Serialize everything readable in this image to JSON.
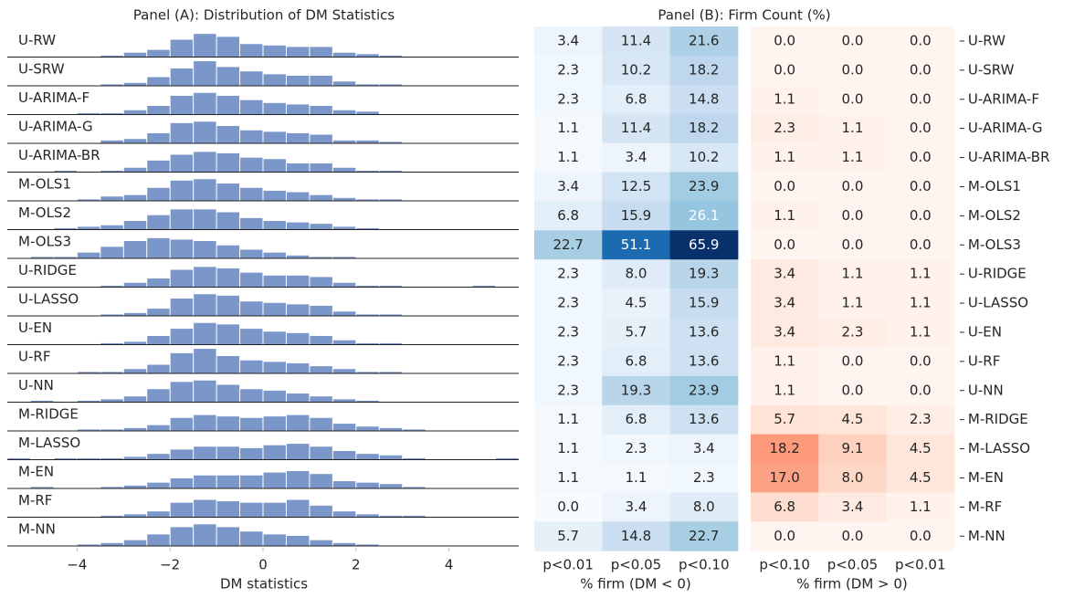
{
  "chart_data": [
    {
      "type": "histogram",
      "title": "Panel (A): Distribution of DM Statistics",
      "xlabel": "DM statistics",
      "color": "#7b97ca",
      "xlim": [
        -5.5,
        5.5
      ],
      "ylim": [
        0,
        18
      ],
      "xticks": [
        {
          "value": -4,
          "label": "−4"
        },
        {
          "value": -2,
          "label": "−2"
        },
        0,
        2,
        4
      ],
      "bins": [
        -5.5,
        -5,
        -4.5,
        -4,
        -3.5,
        -3,
        -2.5,
        -2,
        -1.5,
        -1,
        -0.5,
        0,
        0.5,
        1,
        1.5,
        2,
        2.5,
        3,
        3.5,
        4,
        4.5,
        5,
        5.5
      ],
      "series": [
        {
          "name": "U-RW",
          "values": [
            0,
            0,
            0,
            0,
            1,
            3,
            5,
            12,
            16,
            14,
            9,
            8,
            7,
            7,
            3,
            2,
            1,
            0,
            0,
            0,
            0,
            0
          ]
        },
        {
          "name": "U-SRW",
          "values": [
            0,
            0,
            0,
            0,
            1,
            2,
            6,
            12,
            17,
            13,
            10,
            8,
            7,
            7,
            3,
            1,
            1,
            0,
            0,
            0,
            0,
            0
          ]
        },
        {
          "name": "U-ARIMA-F",
          "values": [
            0,
            0,
            0,
            1,
            1,
            3,
            6,
            13,
            15,
            13,
            10,
            8,
            7,
            6,
            3,
            2,
            0,
            0,
            0,
            0,
            0,
            0
          ]
        },
        {
          "name": "U-ARIMA-G",
          "values": [
            0,
            0,
            0,
            0,
            2,
            3,
            7,
            14,
            15,
            12,
            9,
            8,
            7,
            6,
            2,
            2,
            1,
            0,
            0,
            0,
            0,
            0
          ]
        },
        {
          "name": "U-ARIMA-BR",
          "values": [
            0,
            0,
            1,
            0,
            1,
            3,
            8,
            12,
            14,
            13,
            10,
            9,
            6,
            6,
            3,
            1,
            1,
            0,
            0,
            0,
            0,
            0
          ]
        },
        {
          "name": "M-OLS1",
          "values": [
            0,
            0,
            0,
            1,
            3,
            4,
            9,
            14,
            15,
            12,
            9,
            7,
            6,
            4,
            2,
            1,
            1,
            0,
            0,
            0,
            0,
            0
          ]
        },
        {
          "name": "M-OLS2",
          "values": [
            0,
            0,
            1,
            2,
            3,
            6,
            10,
            14,
            14,
            12,
            8,
            6,
            5,
            4,
            2,
            1,
            0,
            0,
            0,
            0,
            0,
            0
          ]
        },
        {
          "name": "M-OLS3",
          "values": [
            0,
            1,
            1,
            4,
            8,
            12,
            14,
            13,
            12,
            9,
            6,
            4,
            2,
            1,
            1,
            0,
            0,
            0,
            0,
            0,
            0,
            0
          ]
        },
        {
          "name": "U-RIDGE",
          "values": [
            0,
            0,
            0,
            0,
            1,
            3,
            6,
            12,
            14,
            13,
            10,
            8,
            8,
            7,
            3,
            1,
            1,
            0,
            0,
            0,
            1,
            0
          ]
        },
        {
          "name": "U-LASSO",
          "values": [
            0,
            0,
            0,
            0,
            1,
            2,
            5,
            12,
            15,
            14,
            10,
            9,
            8,
            7,
            3,
            1,
            1,
            0,
            0,
            0,
            0,
            0
          ]
        },
        {
          "name": "U-EN",
          "values": [
            0,
            0,
            0,
            0,
            1,
            2,
            6,
            11,
            15,
            14,
            11,
            9,
            8,
            6,
            3,
            1,
            1,
            0,
            0,
            0,
            0,
            0
          ]
        },
        {
          "name": "U-RF",
          "values": [
            0,
            0,
            0,
            1,
            1,
            3,
            6,
            14,
            17,
            12,
            9,
            8,
            7,
            5,
            3,
            1,
            1,
            0,
            0,
            0,
            0,
            0
          ]
        },
        {
          "name": "U-NN",
          "values": [
            0,
            1,
            0,
            1,
            2,
            4,
            9,
            14,
            15,
            12,
            9,
            8,
            6,
            4,
            2,
            1,
            0,
            0,
            0,
            0,
            0,
            0
          ]
        },
        {
          "name": "M-RIDGE",
          "values": [
            0,
            0,
            0,
            1,
            1,
            2,
            4,
            9,
            11,
            10,
            9,
            10,
            11,
            9,
            5,
            3,
            2,
            1,
            0,
            0,
            0,
            0
          ]
        },
        {
          "name": "M-LASSO",
          "values": [
            1,
            0,
            1,
            1,
            1,
            2,
            4,
            7,
            9,
            9,
            8,
            10,
            11,
            9,
            6,
            4,
            3,
            1,
            0,
            0,
            0,
            1
          ]
        },
        {
          "name": "M-EN",
          "values": [
            0,
            1,
            0,
            0,
            1,
            2,
            4,
            7,
            9,
            9,
            9,
            11,
            12,
            10,
            5,
            4,
            3,
            1,
            0,
            0,
            0,
            0
          ]
        },
        {
          "name": "M-RF",
          "values": [
            0,
            0,
            0,
            0,
            1,
            2,
            4,
            10,
            12,
            11,
            10,
            10,
            12,
            8,
            4,
            2,
            1,
            1,
            0,
            0,
            0,
            0
          ]
        },
        {
          "name": "M-NN",
          "values": [
            0,
            0,
            0,
            1,
            2,
            4,
            8,
            13,
            15,
            13,
            10,
            8,
            7,
            4,
            2,
            1,
            0,
            0,
            0,
            0,
            0,
            0
          ]
        }
      ]
    },
    {
      "type": "heatmap",
      "title": "Panel (B): Firm Count (%)",
      "xlabel": "% firm (DM < 0)",
      "columns": [
        "p<0.01",
        "p<0.05",
        "p<0.10"
      ],
      "clim": [
        0,
        65.9
      ],
      "colormap": [
        "#f7fbff",
        "#deebf7",
        "#c6dbef",
        "#9ecae1",
        "#6baed6",
        "#4292c6",
        "#2171b5",
        "#08519c",
        "#08306b"
      ],
      "values": [
        [
          3.4,
          11.4,
          21.6
        ],
        [
          2.3,
          10.2,
          18.2
        ],
        [
          2.3,
          6.8,
          14.8
        ],
        [
          1.1,
          11.4,
          18.2
        ],
        [
          1.1,
          3.4,
          10.2
        ],
        [
          3.4,
          12.5,
          23.9
        ],
        [
          6.8,
          15.9,
          26.1
        ],
        [
          22.7,
          51.1,
          65.9
        ],
        [
          2.3,
          8,
          19.3
        ],
        [
          2.3,
          4.5,
          15.9
        ],
        [
          2.3,
          5.7,
          13.6
        ],
        [
          2.3,
          6.8,
          13.6
        ],
        [
          2.3,
          19.3,
          23.9
        ],
        [
          1.1,
          6.8,
          13.6
        ],
        [
          1.1,
          2.3,
          3.4
        ],
        [
          1.1,
          1.1,
          2.3
        ],
        [
          0,
          3.4,
          8
        ],
        [
          5.7,
          14.8,
          22.7
        ]
      ],
      "value_labels": [
        [
          "3.4",
          "11.4",
          "21.6"
        ],
        [
          "2.3",
          "10.2",
          "18.2"
        ],
        [
          "2.3",
          "6.8",
          "14.8"
        ],
        [
          "1.1",
          "11.4",
          "18.2"
        ],
        [
          "1.1",
          "3.4",
          "10.2"
        ],
        [
          "3.4",
          "12.5",
          "23.9"
        ],
        [
          "6.8",
          "15.9",
          "26.1"
        ],
        [
          "22.7",
          "51.1",
          "65.9"
        ],
        [
          "2.3",
          "8.0",
          "19.3"
        ],
        [
          "2.3",
          "4.5",
          "15.9"
        ],
        [
          "2.3",
          "5.7",
          "13.6"
        ],
        [
          "2.3",
          "6.8",
          "13.6"
        ],
        [
          "2.3",
          "19.3",
          "23.9"
        ],
        [
          "1.1",
          "6.8",
          "13.6"
        ],
        [
          "1.1",
          "2.3",
          "3.4"
        ],
        [
          "1.1",
          "1.1",
          "2.3"
        ],
        [
          "0.0",
          "3.4",
          "8.0"
        ],
        [
          "5.7",
          "14.8",
          "22.7"
        ]
      ]
    },
    {
      "type": "heatmap",
      "xlabel": "% firm (DM > 0)",
      "columns": [
        "p<0.10",
        "p<0.05",
        "p<0.01"
      ],
      "clim": [
        0,
        52
      ],
      "colormap": [
        "#fff5f0",
        "#fee0d2",
        "#fcbba1",
        "#fc9272",
        "#fb6a4a",
        "#ef3b2c",
        "#cb181d",
        "#a50f15",
        "#67000d"
      ],
      "rows": [
        "U-RW",
        "U-SRW",
        "U-ARIMA-F",
        "U-ARIMA-G",
        "U-ARIMA-BR",
        "M-OLS1",
        "M-OLS2",
        "M-OLS3",
        "U-RIDGE",
        "U-LASSO",
        "U-EN",
        "U-RF",
        "U-NN",
        "M-RIDGE",
        "M-LASSO",
        "M-EN",
        "M-RF",
        "M-NN"
      ],
      "values": [
        [
          0,
          0,
          0
        ],
        [
          0,
          0,
          0
        ],
        [
          1.1,
          0,
          0
        ],
        [
          2.3,
          1.1,
          0
        ],
        [
          1.1,
          1.1,
          0
        ],
        [
          0,
          0,
          0
        ],
        [
          1.1,
          0,
          0
        ],
        [
          0,
          0,
          0
        ],
        [
          3.4,
          1.1,
          1.1
        ],
        [
          3.4,
          1.1,
          1.1
        ],
        [
          3.4,
          2.3,
          1.1
        ],
        [
          1.1,
          0,
          0
        ],
        [
          1.1,
          0,
          0
        ],
        [
          5.7,
          4.5,
          2.3
        ],
        [
          18.2,
          9.1,
          4.5
        ],
        [
          17,
          8,
          4.5
        ],
        [
          6.8,
          3.4,
          1.1
        ],
        [
          0,
          0,
          0
        ]
      ],
      "value_labels": [
        [
          "0.0",
          "0.0",
          "0.0"
        ],
        [
          "0.0",
          "0.0",
          "0.0"
        ],
        [
          "1.1",
          "0.0",
          "0.0"
        ],
        [
          "2.3",
          "1.1",
          "0.0"
        ],
        [
          "1.1",
          "1.1",
          "0.0"
        ],
        [
          "0.0",
          "0.0",
          "0.0"
        ],
        [
          "1.1",
          "0.0",
          "0.0"
        ],
        [
          "0.0",
          "0.0",
          "0.0"
        ],
        [
          "3.4",
          "1.1",
          "1.1"
        ],
        [
          "3.4",
          "1.1",
          "1.1"
        ],
        [
          "3.4",
          "2.3",
          "1.1"
        ],
        [
          "1.1",
          "0.0",
          "0.0"
        ],
        [
          "1.1",
          "0.0",
          "0.0"
        ],
        [
          "5.7",
          "4.5",
          "2.3"
        ],
        [
          "18.2",
          "9.1",
          "4.5"
        ],
        [
          "17.0",
          "8.0",
          "4.5"
        ],
        [
          "6.8",
          "3.4",
          "1.1"
        ],
        [
          "0.0",
          "0.0",
          "0.0"
        ]
      ]
    }
  ]
}
